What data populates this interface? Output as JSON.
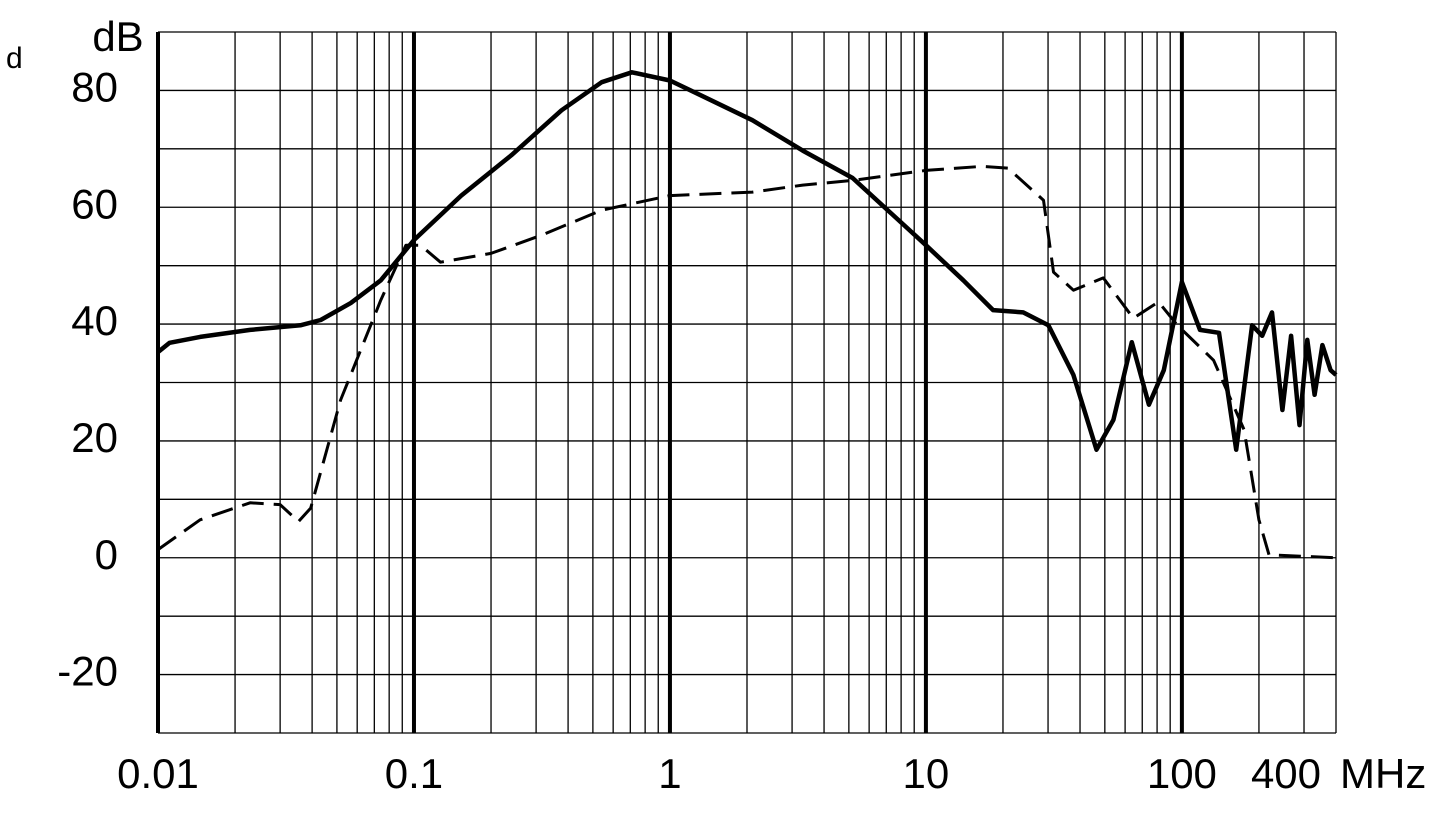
{
  "chart_data": {
    "type": "line",
    "x_label": "MHz",
    "y_label": "dB",
    "annotations": [
      "d"
    ],
    "log_x": true,
    "xlim": [
      0.01,
      400
    ],
    "xticks": [
      0.01,
      0.1,
      1,
      10,
      100,
      400
    ],
    "ylim": [
      -30,
      90
    ],
    "yticks": [
      -20,
      0,
      20,
      40,
      60,
      80
    ],
    "minor_yticks": [
      -30,
      -10,
      10,
      30,
      50,
      70,
      90
    ],
    "grid": true,
    "series": [
      {
        "color": "#000000",
        "dashed": false,
        "x": [
          0.01,
          0.0111,
          0.0146,
          0.0229,
          0.036,
          0.0432,
          0.0566,
          0.0742,
          0.1,
          0.153,
          0.24,
          0.377,
          0.541,
          0.71,
          1,
          1.33,
          2.1,
          3.3,
          5.17,
          10,
          14,
          18.3,
          24,
          30.1,
          37.7,
          46.4,
          54,
          63.7,
          74.3,
          85,
          100,
          117.7,
          139.6,
          163,
          188,
          206,
          225,
          247,
          267,
          288,
          309,
          330,
          354,
          381,
          400
        ],
        "values": [
          35.2,
          36.8,
          37.8,
          39,
          39.8,
          40.7,
          43.6,
          47.5,
          54.4,
          62,
          68.9,
          76.6,
          81.4,
          83.1,
          81.7,
          79.1,
          74.9,
          69.7,
          65,
          53.5,
          47.5,
          42.4,
          42,
          39.8,
          31.3,
          18.5,
          23.6,
          36.9,
          26.2,
          32.1,
          47.2,
          39,
          38.5,
          18.5,
          39.8,
          38,
          42,
          25.3,
          38,
          22.7,
          37.3,
          27.9,
          36.4,
          32.1,
          31.3
        ]
      },
      {
        "color": "#000000",
        "dashed": true,
        "x": [
          0.01,
          0.0146,
          0.0229,
          0.03,
          0.0354,
          0.0395,
          0.0517,
          0.0742,
          0.093,
          0.106,
          0.127,
          0.2,
          0.314,
          0.541,
          1,
          2.1,
          3.3,
          5.17,
          10,
          16.5,
          20.9,
          28.8,
          31.5,
          37.7,
          49.3,
          64.6,
          81,
          96,
          133,
          175,
          200,
          219,
          400
        ],
        "values": [
          1.4,
          6.5,
          9.4,
          9.1,
          6.2,
          8.5,
          27,
          44.1,
          53.5,
          53.5,
          50.6,
          52.1,
          55.2,
          59.5,
          62,
          62.6,
          63.8,
          64.6,
          66.3,
          67,
          66.7,
          61.2,
          48.9,
          45.8,
          47.9,
          41,
          43.8,
          39.8,
          33.8,
          21.9,
          6.5,
          0.5,
          0
        ]
      }
    ]
  }
}
